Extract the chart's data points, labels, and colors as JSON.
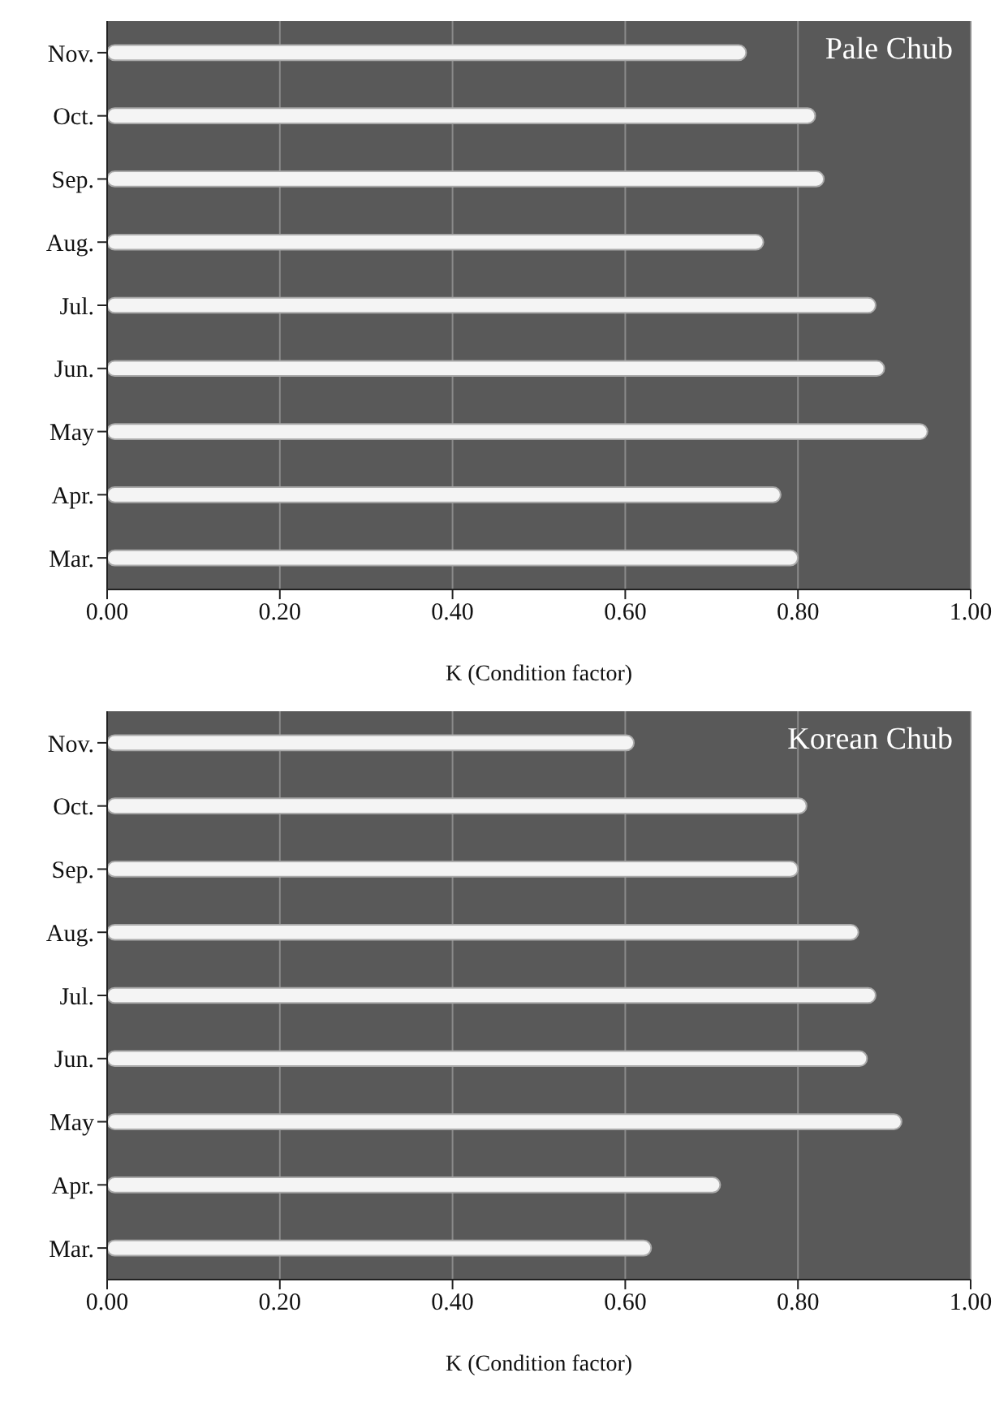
{
  "chart_data": [
    {
      "type": "bar",
      "orientation": "horizontal",
      "title": "Pale Chub",
      "xlabel": "K (Condition factor)",
      "categories": [
        "Nov.",
        "Oct.",
        "Sep.",
        "Aug.",
        "Jul.",
        "Jun.",
        "May",
        "Apr.",
        "Mar."
      ],
      "values": [
        0.74,
        0.82,
        0.83,
        0.76,
        0.89,
        0.9,
        0.95,
        0.78,
        0.8
      ],
      "color": "#f4f4f4",
      "xlim": [
        0,
        1
      ],
      "xticks": [
        {
          "value": 0,
          "label": "0.00"
        },
        {
          "value": 0.2,
          "label": "0.20"
        },
        {
          "value": 0.4,
          "label": "0.40"
        },
        {
          "value": 0.6,
          "label": "0.60"
        },
        {
          "value": 0.8,
          "label": "0.80"
        },
        {
          "value": 1,
          "label": "1.00"
        }
      ],
      "grid": "x"
    },
    {
      "type": "bar",
      "orientation": "horizontal",
      "title": "Korean Chub",
      "xlabel": "K (Condition factor)",
      "categories": [
        "Nov.",
        "Oct.",
        "Sep.",
        "Aug.",
        "Jul.",
        "Jun.",
        "May",
        "Apr.",
        "Mar."
      ],
      "values": [
        0.61,
        0.81,
        0.8,
        0.87,
        0.89,
        0.88,
        0.92,
        0.71,
        0.63
      ],
      "color": "#f4f4f4",
      "xlim": [
        0,
        1
      ],
      "xticks": [
        {
          "value": 0,
          "label": "0.00"
        },
        {
          "value": 0.2,
          "label": "0.20"
        },
        {
          "value": 0.4,
          "label": "0.40"
        },
        {
          "value": 0.6,
          "label": "0.60"
        },
        {
          "value": 0.8,
          "label": "0.80"
        },
        {
          "value": 1,
          "label": "1.00"
        }
      ],
      "grid": "x"
    }
  ]
}
